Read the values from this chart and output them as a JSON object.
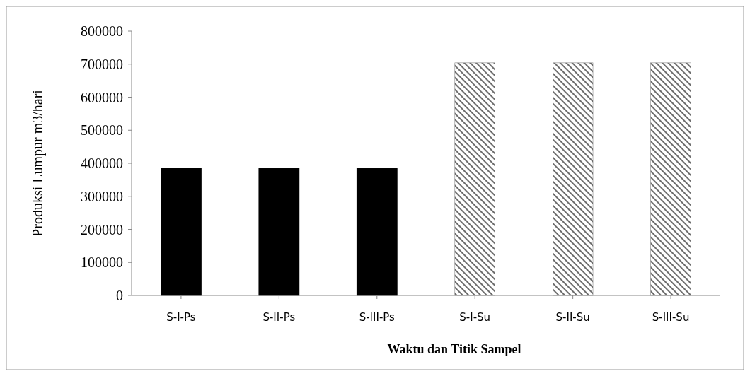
{
  "chart_data": {
    "type": "bar",
    "xlabel": "Waktu dan Titik Sampel",
    "ylabel": "Produksi  Lumpur m3/hari",
    "categories": [
      "S-I-Ps",
      "S-II-Ps",
      "S-III-Ps",
      "S-I-Su",
      "S-II-Su",
      "S-III-Su"
    ],
    "values": [
      386000,
      384000,
      384000,
      704000,
      704000,
      704000
    ],
    "colors": [
      "#000000",
      "#000000",
      "#000000",
      "#6e6e6e",
      "#6e6e6e",
      "#6e6e6e"
    ],
    "ylim": [
      0,
      800000
    ],
    "yticks": [
      0,
      100000,
      200000,
      300000,
      400000,
      500000,
      600000,
      700000,
      800000
    ],
    "grid": false
  }
}
